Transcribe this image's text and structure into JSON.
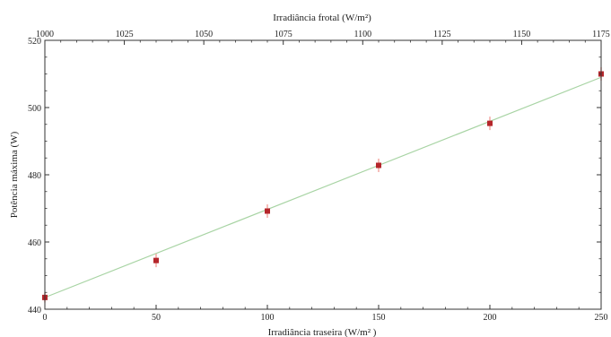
{
  "chart_data": {
    "type": "scatter",
    "title": "",
    "xlabel": "Irradiância traseira (W/m² )",
    "ylabel": "Potência máxima (W)",
    "x2label": "Irradiância frotal (W/m²)",
    "xlim": [
      0,
      250
    ],
    "x2lim": [
      1000,
      1175
    ],
    "ylim": [
      440,
      520
    ],
    "xticks": [
      "0",
      "50",
      "100",
      "150",
      "200",
      "250"
    ],
    "x2ticks": [
      "1000",
      "1025",
      "1050",
      "1075",
      "1100",
      "1125",
      "1150",
      "1175"
    ],
    "yticks": [
      "440",
      "460",
      "480",
      "500",
      "520"
    ],
    "grid": false,
    "series": [
      {
        "x": [
          0,
          50,
          100,
          150,
          200,
          250
        ],
        "y": [
          443.5,
          454.5,
          469.2,
          482.8,
          495.3,
          510.0
        ],
        "err": [
          1.5,
          2.0,
          2.0,
          2.0,
          2.0,
          2.0
        ]
      }
    ],
    "fit": {
      "x": [
        0,
        250
      ],
      "y": [
        443.5,
        509.0
      ]
    },
    "colors": {
      "points": "#b5262b",
      "errorbars": "#f2a9a3",
      "fit": "#a8d4a4",
      "axes": "#333333"
    }
  }
}
